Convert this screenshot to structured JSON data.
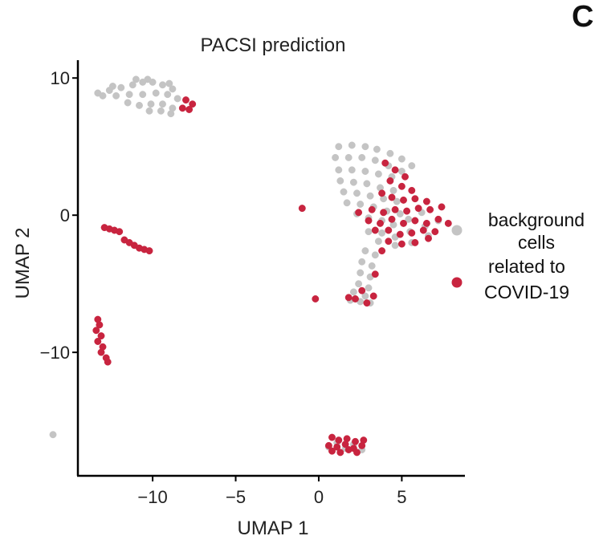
{
  "panel_letter": "C",
  "chart_data": {
    "type": "scatter",
    "title": "PACSI prediction",
    "xlabel": "UMAP 1",
    "ylabel": "UMAP 2",
    "xlim": [
      -14.5,
      8.8
    ],
    "ylim": [
      -19.0,
      11.3
    ],
    "xticks": [
      -10,
      -5,
      0,
      5
    ],
    "yticks": [
      10,
      0,
      -10
    ],
    "xtick_labels": [
      "−10",
      "−5",
      "0",
      "5"
    ],
    "ytick_labels": [
      "10",
      "0",
      "−10"
    ],
    "grid": false,
    "legend_position": "right",
    "colors": {
      "background": "#c4c4c4",
      "related": "#c8243f"
    },
    "legend": [
      {
        "key": "background",
        "label_lines": [
          "background",
          "cells"
        ]
      },
      {
        "key": "related",
        "label_lines": [
          "related to",
          "COVID-19"
        ]
      }
    ],
    "series": [
      {
        "name": "background cells",
        "key": "background",
        "points": [
          [
            -13.3,
            8.9
          ],
          [
            -12.6,
            9.1
          ],
          [
            -11.9,
            9.3
          ],
          [
            -11.2,
            9.5
          ],
          [
            -10.6,
            9.7
          ],
          [
            -10.0,
            9.7
          ],
          [
            -9.4,
            9.5
          ],
          [
            -8.8,
            9.2
          ],
          [
            -13.0,
            8.7
          ],
          [
            -12.2,
            8.7
          ],
          [
            -11.4,
            8.8
          ],
          [
            -10.6,
            8.8
          ],
          [
            -9.8,
            8.9
          ],
          [
            -9.1,
            8.8
          ],
          [
            -8.5,
            8.5
          ],
          [
            -11.5,
            8.2
          ],
          [
            -10.8,
            8.0
          ],
          [
            -10.1,
            8.1
          ],
          [
            -9.4,
            8.1
          ],
          [
            -8.8,
            7.8
          ],
          [
            -10.2,
            7.6
          ],
          [
            -9.5,
            7.6
          ],
          [
            -8.9,
            7.4
          ],
          [
            -12.4,
            9.4
          ],
          [
            -11.0,
            9.9
          ],
          [
            -10.3,
            9.9
          ],
          [
            -9.0,
            9.6
          ],
          [
            1.2,
            5.0
          ],
          [
            2.0,
            5.1
          ],
          [
            2.8,
            5.0
          ],
          [
            3.5,
            4.8
          ],
          [
            4.3,
            4.5
          ],
          [
            5.0,
            4.1
          ],
          [
            5.6,
            3.6
          ],
          [
            1.0,
            4.2
          ],
          [
            1.8,
            4.2
          ],
          [
            2.6,
            4.2
          ],
          [
            3.4,
            4.0
          ],
          [
            4.2,
            3.6
          ],
          [
            5.0,
            3.2
          ],
          [
            1.2,
            3.3
          ],
          [
            2.0,
            3.3
          ],
          [
            2.8,
            3.2
          ],
          [
            3.6,
            3.0
          ],
          [
            4.4,
            2.8
          ],
          [
            1.3,
            2.5
          ],
          [
            2.1,
            2.4
          ],
          [
            2.9,
            2.3
          ],
          [
            3.7,
            2.0
          ],
          [
            4.5,
            1.8
          ],
          [
            1.5,
            1.7
          ],
          [
            2.3,
            1.6
          ],
          [
            3.1,
            1.4
          ],
          [
            3.9,
            1.2
          ],
          [
            4.7,
            1.0
          ],
          [
            1.7,
            0.9
          ],
          [
            2.5,
            0.8
          ],
          [
            3.3,
            0.6
          ],
          [
            4.1,
            0.3
          ],
          [
            4.9,
            0.1
          ],
          [
            2.3,
            0.1
          ],
          [
            3.0,
            -0.2
          ],
          [
            3.8,
            -0.4
          ],
          [
            4.5,
            -0.7
          ],
          [
            5.4,
            -0.3
          ],
          [
            6.2,
            0.2
          ],
          [
            3.0,
            -1.2
          ],
          [
            3.8,
            -1.3
          ],
          [
            4.6,
            -1.6
          ],
          [
            5.5,
            -1.2
          ],
          [
            6.4,
            -0.8
          ],
          [
            7.2,
            -0.4
          ],
          [
            3.6,
            -1.9
          ],
          [
            4.6,
            -2.2
          ],
          [
            5.6,
            -2.0
          ],
          [
            6.6,
            -1.5
          ],
          [
            2.8,
            -2.6
          ],
          [
            3.4,
            -2.9
          ],
          [
            2.6,
            -3.4
          ],
          [
            3.2,
            -3.7
          ],
          [
            2.5,
            -4.2
          ],
          [
            3.1,
            -4.5
          ],
          [
            2.4,
            -5.0
          ],
          [
            3.0,
            -5.3
          ],
          [
            2.1,
            -5.6
          ],
          [
            2.8,
            -5.9
          ],
          [
            1.9,
            -6.2
          ],
          [
            2.5,
            -6.3
          ],
          [
            3.1,
            -6.4
          ],
          [
            -16.0,
            -16.0
          ],
          [
            0.6,
            -16.9
          ],
          [
            1.1,
            -16.6
          ],
          [
            1.6,
            -17.0
          ],
          [
            2.1,
            -16.7
          ],
          [
            2.6,
            -17.1
          ],
          [
            -1.0,
            0.5
          ]
        ]
      },
      {
        "name": "related to COVID-19",
        "key": "related",
        "points": [
          [
            -8.0,
            8.4
          ],
          [
            -7.6,
            8.1
          ],
          [
            -8.2,
            7.8
          ],
          [
            -7.8,
            7.7
          ],
          [
            -12.9,
            -0.9
          ],
          [
            -12.6,
            -1.0
          ],
          [
            -12.3,
            -1.1
          ],
          [
            -12.0,
            -1.2
          ],
          [
            -11.7,
            -1.8
          ],
          [
            -11.4,
            -2.0
          ],
          [
            -11.1,
            -2.2
          ],
          [
            -10.8,
            -2.4
          ],
          [
            -10.5,
            -2.5
          ],
          [
            -10.2,
            -2.6
          ],
          [
            -13.3,
            -7.6
          ],
          [
            -13.2,
            -8.0
          ],
          [
            -13.4,
            -8.4
          ],
          [
            -13.1,
            -8.8
          ],
          [
            -13.3,
            -9.2
          ],
          [
            -13.0,
            -9.6
          ],
          [
            -13.1,
            -10.0
          ],
          [
            -12.8,
            -10.4
          ],
          [
            -12.7,
            -10.7
          ],
          [
            -1.0,
            0.5
          ],
          [
            0.8,
            -16.2
          ],
          [
            1.2,
            -16.4
          ],
          [
            1.7,
            -16.3
          ],
          [
            2.2,
            -16.5
          ],
          [
            2.7,
            -16.4
          ],
          [
            0.6,
            -16.8
          ],
          [
            1.1,
            -16.9
          ],
          [
            1.6,
            -16.7
          ],
          [
            2.1,
            -17.0
          ],
          [
            2.6,
            -16.8
          ],
          [
            0.8,
            -17.2
          ],
          [
            1.3,
            -17.3
          ],
          [
            1.8,
            -17.1
          ],
          [
            2.3,
            -17.3
          ],
          [
            4.0,
            3.8
          ],
          [
            4.6,
            3.3
          ],
          [
            5.2,
            2.8
          ],
          [
            4.3,
            2.5
          ],
          [
            5.0,
            2.1
          ],
          [
            5.6,
            1.8
          ],
          [
            3.8,
            1.6
          ],
          [
            4.4,
            1.3
          ],
          [
            5.1,
            1.1
          ],
          [
            5.8,
            1.2
          ],
          [
            6.5,
            1.0
          ],
          [
            2.4,
            0.2
          ],
          [
            3.2,
            0.4
          ],
          [
            3.9,
            0.2
          ],
          [
            4.6,
            0.4
          ],
          [
            5.3,
            0.3
          ],
          [
            6.0,
            0.5
          ],
          [
            6.7,
            0.4
          ],
          [
            7.4,
            0.6
          ],
          [
            3.0,
            -0.4
          ],
          [
            3.7,
            -0.6
          ],
          [
            4.4,
            -0.3
          ],
          [
            5.1,
            -0.6
          ],
          [
            5.8,
            -0.4
          ],
          [
            6.5,
            -0.6
          ],
          [
            7.2,
            -0.3
          ],
          [
            3.4,
            -1.1
          ],
          [
            4.2,
            -1.1
          ],
          [
            4.9,
            -1.4
          ],
          [
            5.6,
            -1.3
          ],
          [
            6.3,
            -1.1
          ],
          [
            7.0,
            -1.2
          ],
          [
            7.8,
            -0.6
          ],
          [
            4.2,
            -1.9
          ],
          [
            5.0,
            -2.1
          ],
          [
            5.8,
            -2.0
          ],
          [
            6.6,
            -1.7
          ],
          [
            3.8,
            -2.6
          ],
          [
            3.4,
            -4.3
          ],
          [
            2.6,
            -5.5
          ],
          [
            3.3,
            -5.9
          ],
          [
            2.2,
            -6.1
          ],
          [
            1.8,
            -6.0
          ],
          [
            -0.2,
            -6.1
          ],
          [
            2.9,
            -6.4
          ]
        ]
      }
    ]
  }
}
